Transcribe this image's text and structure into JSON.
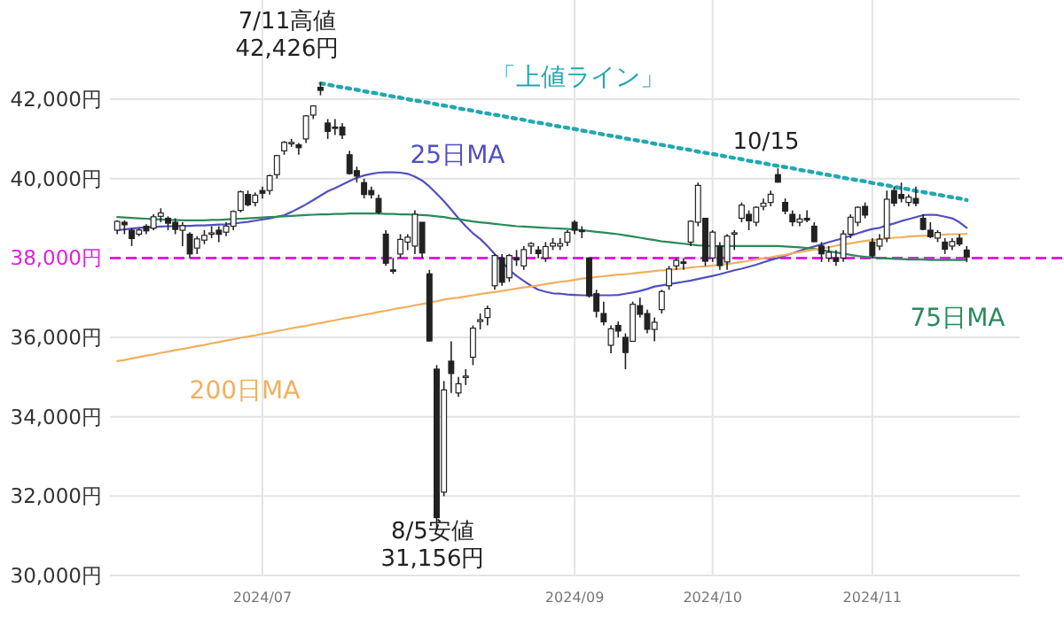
{
  "chart_data": {
    "type": "candlestick",
    "categories": [
      null,
      null,
      null,
      null,
      null,
      null,
      null,
      null,
      null,
      null,
      null,
      null,
      null,
      null,
      null,
      null,
      null,
      null,
      null,
      null,
      "2024/07",
      null,
      null,
      null,
      null,
      null,
      null,
      null,
      null,
      null,
      null,
      null,
      null,
      null,
      null,
      null,
      null,
      null,
      null,
      null,
      null,
      null,
      null,
      null,
      null,
      null,
      null,
      null,
      null,
      null,
      null,
      null,
      null,
      null,
      null,
      null,
      null,
      null,
      null,
      null,
      null,
      null,
      null,
      "2024/09",
      null,
      null,
      null,
      null,
      null,
      null,
      null,
      null,
      null,
      null,
      null,
      null,
      null,
      null,
      null,
      null,
      null,
      null,
      "2024/10",
      null,
      null,
      null,
      null,
      null,
      null,
      null,
      null,
      null,
      null,
      null,
      null,
      null,
      null,
      null,
      null,
      null,
      null,
      null,
      null,
      null,
      "2024/11",
      null,
      null,
      null,
      null,
      null,
      null,
      null,
      null,
      null,
      null,
      null,
      null,
      null
    ],
    "ohlc": [
      [
        38700,
        38950,
        38600,
        38923
      ],
      [
        38900,
        38950,
        38600,
        38837
      ],
      [
        38700,
        38750,
        38300,
        38490
      ],
      [
        38600,
        38750,
        38550,
        38703
      ],
      [
        38800,
        38850,
        38600,
        38683
      ],
      [
        38750,
        39100,
        38700,
        39038
      ],
      [
        39050,
        39250,
        38900,
        39134
      ],
      [
        39000,
        39050,
        38700,
        38876
      ],
      [
        38900,
        39000,
        38600,
        38720
      ],
      [
        38700,
        38900,
        38300,
        38814
      ],
      [
        38600,
        38650,
        38000,
        38102
      ],
      [
        38250,
        38550,
        38100,
        38482
      ],
      [
        38450,
        38700,
        38350,
        38570
      ],
      [
        38600,
        38800,
        38500,
        38633
      ],
      [
        38700,
        38800,
        38400,
        38596
      ],
      [
        38650,
        38900,
        38550,
        38804
      ],
      [
        38800,
        39200,
        38700,
        39173
      ],
      [
        39200,
        39700,
        39150,
        39667
      ],
      [
        39600,
        39700,
        39300,
        39341
      ],
      [
        39400,
        39650,
        39300,
        39583
      ],
      [
        39700,
        39800,
        39500,
        39631
      ],
      [
        39700,
        40100,
        39600,
        40074
      ],
      [
        40100,
        40600,
        40000,
        40580
      ],
      [
        40700,
        40950,
        40600,
        40913
      ],
      [
        40900,
        41000,
        40800,
        40912
      ],
      [
        40850,
        40900,
        40600,
        40780
      ],
      [
        41000,
        41600,
        40900,
        41580
      ],
      [
        41600,
        41850,
        41500,
        41831
      ],
      [
        42300,
        42426,
        42100,
        42224
      ],
      [
        41400,
        41500,
        41000,
        41190
      ],
      [
        41300,
        41500,
        41100,
        41275
      ],
      [
        41300,
        41400,
        41000,
        41098
      ],
      [
        40600,
        40700,
        40100,
        40126
      ],
      [
        40200,
        40300,
        39900,
        40063
      ],
      [
        39900,
        40000,
        39500,
        39599
      ],
      [
        39700,
        39800,
        39500,
        39594
      ],
      [
        39500,
        39600,
        39100,
        39154
      ],
      [
        38600,
        38700,
        37800,
        37869
      ],
      [
        37700,
        38000,
        37600,
        37667
      ],
      [
        38100,
        38600,
        38000,
        38468
      ],
      [
        38400,
        38600,
        38200,
        38525
      ],
      [
        38300,
        39200,
        38100,
        39101
      ],
      [
        38900,
        38900,
        38000,
        38126
      ],
      [
        37600,
        37700,
        35900,
        35909
      ],
      [
        35200,
        35300,
        31156,
        31458
      ],
      [
        32100,
        34900,
        32000,
        34675
      ],
      [
        35400,
        35900,
        34600,
        35089
      ],
      [
        34600,
        35000,
        34500,
        34831
      ],
      [
        35000,
        35200,
        34800,
        35025
      ],
      [
        35500,
        36300,
        35300,
        36232
      ],
      [
        36400,
        36600,
        36200,
        36442
      ],
      [
        36500,
        36800,
        36300,
        36726
      ],
      [
        37300,
        38100,
        37200,
        38062
      ],
      [
        38000,
        38100,
        37300,
        37388
      ],
      [
        37500,
        38100,
        37400,
        38062
      ],
      [
        38000,
        38200,
        37800,
        37951
      ],
      [
        37800,
        38300,
        37700,
        38211
      ],
      [
        38300,
        38400,
        38100,
        38364
      ],
      [
        38200,
        38300,
        38000,
        38110
      ],
      [
        38000,
        38400,
        37900,
        38288
      ],
      [
        38300,
        38500,
        38200,
        38371
      ],
      [
        38300,
        38500,
        38200,
        38362
      ],
      [
        38400,
        38700,
        38300,
        38647
      ],
      [
        38900,
        38950,
        38600,
        38700
      ],
      [
        38700,
        38800,
        38500,
        38686
      ],
      [
        38000,
        38000,
        37000,
        37047
      ],
      [
        37100,
        37200,
        36500,
        36657
      ],
      [
        36600,
        36900,
        36300,
        36391
      ],
      [
        35800,
        36300,
        35600,
        36215
      ],
      [
        36300,
        36400,
        36000,
        36159
      ],
      [
        36000,
        36100,
        35200,
        35619
      ],
      [
        35900,
        36900,
        35900,
        36833
      ],
      [
        36800,
        37000,
        36500,
        36581
      ],
      [
        36600,
        36700,
        36100,
        36203
      ],
      [
        36200,
        36500,
        35900,
        36380
      ],
      [
        36700,
        37200,
        36600,
        37155
      ],
      [
        37300,
        37800,
        37200,
        37723
      ],
      [
        37800,
        38000,
        37700,
        37940
      ],
      [
        37900,
        38000,
        37700,
        37870
      ],
      [
        38400,
        38950,
        38300,
        38925
      ],
      [
        38900,
        39900,
        38800,
        39829
      ],
      [
        39000,
        39000,
        37800,
        37919
      ],
      [
        38000,
        38700,
        37900,
        38651
      ],
      [
        38300,
        38400,
        37700,
        37808
      ],
      [
        37900,
        38600,
        37700,
        38552
      ],
      [
        38600,
        38700,
        38200,
        38635
      ],
      [
        39000,
        39400,
        38900,
        39332
      ],
      [
        39100,
        39200,
        38700,
        38937
      ],
      [
        38900,
        39300,
        38800,
        39277
      ],
      [
        39300,
        39500,
        39200,
        39380
      ],
      [
        39400,
        39700,
        39300,
        39605
      ],
      [
        40100,
        40257,
        39900,
        39910
      ],
      [
        39400,
        39500,
        39100,
        39180
      ],
      [
        39100,
        39200,
        38800,
        38911
      ],
      [
        38900,
        39100,
        38800,
        38981
      ],
      [
        39000,
        39200,
        38900,
        38954
      ],
      [
        38800,
        38900,
        38400,
        38411
      ],
      [
        38300,
        38400,
        37900,
        38104
      ],
      [
        38000,
        38300,
        37900,
        38143
      ],
      [
        38000,
        38200,
        37800,
        37913
      ],
      [
        38000,
        38700,
        37900,
        38605
      ],
      [
        38600,
        39100,
        38500,
        39027
      ],
      [
        38900,
        39300,
        38800,
        39277
      ],
      [
        39300,
        39400,
        39000,
        39081
      ],
      [
        38400,
        38500,
        38000,
        38053
      ],
      [
        38300,
        38600,
        38200,
        38474
      ],
      [
        38500,
        39700,
        38400,
        39480
      ],
      [
        39700,
        39800,
        39300,
        39381
      ],
      [
        39600,
        39900,
        39400,
        39500
      ],
      [
        39400,
        39600,
        39300,
        39533
      ],
      [
        39500,
        39800,
        39300,
        39376
      ],
      [
        39000,
        39100,
        38700,
        38721
      ],
      [
        38700,
        38900,
        38500,
        38535
      ],
      [
        38500,
        38700,
        38400,
        38642
      ],
      [
        38400,
        38500,
        38100,
        38220
      ],
      [
        38300,
        38500,
        38200,
        38414
      ],
      [
        38500,
        38600,
        38300,
        38352
      ],
      [
        38200,
        38300,
        37900,
        38026
      ]
    ],
    "series": [
      {
        "name": "25日MA",
        "type": "line",
        "color": "#5050c0",
        "values": [
          38700,
          38720,
          38740,
          38760,
          38770,
          38780,
          38790,
          38800,
          38800,
          38810,
          38810,
          38820,
          38820,
          38830,
          38840,
          38850,
          38870,
          38890,
          38910,
          38940,
          38970,
          39000,
          39040,
          39080,
          39160,
          39250,
          39350,
          39460,
          39570,
          39680,
          39760,
          39850,
          39940,
          40020,
          40080,
          40120,
          40150,
          40160,
          40160,
          40150,
          40120,
          40050,
          39950,
          39800,
          39620,
          39430,
          39220,
          39000,
          38800,
          38620,
          38480,
          38300,
          38100,
          37900,
          37700,
          37550,
          37420,
          37300,
          37200,
          37150,
          37110,
          37100,
          37080,
          37070,
          37060,
          37060,
          37060,
          37060,
          37060,
          37070,
          37100,
          37130,
          37170,
          37220,
          37280,
          37310,
          37340,
          37370,
          37400,
          37430,
          37470,
          37510,
          37550,
          37590,
          37640,
          37690,
          37730,
          37780,
          37830,
          37890,
          37950,
          38000,
          38060,
          38120,
          38180,
          38240,
          38290,
          38340,
          38400,
          38450,
          38500,
          38560,
          38620,
          38680,
          38730,
          38760,
          38820,
          38870,
          38930,
          38980,
          39030,
          39080,
          39090,
          39080,
          39040,
          39000,
          38900,
          38760
        ]
      },
      {
        "name": "75日MA",
        "type": "line",
        "color": "#2a8a5a",
        "values": [
          39030,
          39020,
          39010,
          39000,
          38990,
          38980,
          38970,
          38960,
          38960,
          38950,
          38950,
          38950,
          38950,
          38960,
          38960,
          38970,
          38980,
          38990,
          39000,
          39010,
          39020,
          39030,
          39040,
          39050,
          39060,
          39070,
          39080,
          39090,
          39100,
          39100,
          39110,
          39110,
          39120,
          39120,
          39120,
          39120,
          39120,
          39110,
          39110,
          39100,
          39100,
          39090,
          39080,
          39070,
          39050,
          39030,
          39000,
          38980,
          38950,
          38920,
          38900,
          38880,
          38860,
          38840,
          38820,
          38800,
          38790,
          38780,
          38770,
          38760,
          38750,
          38740,
          38730,
          38720,
          38700,
          38680,
          38660,
          38640,
          38620,
          38600,
          38570,
          38540,
          38510,
          38480,
          38450,
          38420,
          38400,
          38380,
          38360,
          38340,
          38320,
          38310,
          38300,
          38300,
          38300,
          38300,
          38300,
          38300,
          38300,
          38300,
          38300,
          38300,
          38290,
          38280,
          38270,
          38250,
          38230,
          38200,
          38170,
          38140,
          38110,
          38080,
          38050,
          38030,
          38010,
          38000,
          37990,
          37980,
          37970,
          37960,
          37960,
          37960,
          37950,
          37950,
          37950,
          37950,
          37950,
          37950
        ]
      },
      {
        "name": "200日MA",
        "type": "line",
        "color": "#f0b060",
        "values": [
          35400,
          35430,
          35470,
          35500,
          35540,
          35570,
          35610,
          35640,
          35680,
          35710,
          35740,
          35780,
          35810,
          35850,
          35880,
          35920,
          35950,
          35990,
          36020,
          36050,
          36090,
          36120,
          36160,
          36190,
          36230,
          36260,
          36290,
          36330,
          36360,
          36400,
          36430,
          36470,
          36500,
          36530,
          36570,
          36600,
          36640,
          36670,
          36710,
          36740,
          36770,
          36810,
          36840,
          36880,
          36910,
          36950,
          36980,
          37000,
          37030,
          37060,
          37090,
          37120,
          37140,
          37170,
          37200,
          37230,
          37260,
          37280,
          37310,
          37340,
          37370,
          37400,
          37420,
          37450,
          37480,
          37500,
          37520,
          37540,
          37560,
          37580,
          37590,
          37610,
          37630,
          37650,
          37670,
          37690,
          37700,
          37720,
          37740,
          37760,
          37780,
          37790,
          37810,
          37830,
          37850,
          37870,
          37900,
          37930,
          37960,
          37990,
          38020,
          38050,
          38080,
          38120,
          38150,
          38180,
          38210,
          38240,
          38270,
          38310,
          38340,
          38370,
          38400,
          38430,
          38450,
          38470,
          38490,
          38510,
          38520,
          38540,
          38550,
          38560,
          38570,
          38580,
          38590,
          38600,
          38600,
          38610
        ]
      },
      {
        "name": "「上値ライン」",
        "type": "line",
        "color": "#20a8b0",
        "line_style": "dotted",
        "values": [
          null,
          null,
          null,
          null,
          null,
          null,
          null,
          null,
          null,
          null,
          null,
          null,
          null,
          null,
          null,
          null,
          null,
          null,
          null,
          null,
          null,
          null,
          null,
          null,
          null,
          null,
          null,
          null,
          42400,
          42370,
          42330,
          42300,
          42270,
          42240,
          42200,
          42170,
          42140,
          42100,
          42070,
          42040,
          42000,
          41970,
          41940,
          41910,
          41870,
          41840,
          41810,
          41770,
          41740,
          41710,
          41670,
          41640,
          41610,
          41580,
          41540,
          41510,
          41480,
          41440,
          41410,
          41380,
          41340,
          41310,
          41280,
          41250,
          41210,
          41180,
          41150,
          41110,
          41080,
          41050,
          41010,
          40980,
          40950,
          40920,
          40880,
          40850,
          40820,
          40780,
          40750,
          40720,
          40680,
          40650,
          40620,
          40590,
          40550,
          40520,
          40490,
          40450,
          40420,
          40390,
          40350,
          40320,
          40290,
          40260,
          40220,
          40190,
          40160,
          40120,
          40090,
          40060,
          40020,
          39990,
          39960,
          39930,
          39890,
          39860,
          39830,
          39790,
          39760,
          39730,
          39690,
          39660,
          39630,
          39600,
          39560,
          39530,
          39500,
          39460
        ]
      }
    ],
    "ylim": [
      30000,
      44500
    ],
    "yticks": [
      {
        "value": 30000,
        "label": "30,000円"
      },
      {
        "value": 32000,
        "label": "32,000円"
      },
      {
        "value": 34000,
        "label": "34,000円"
      },
      {
        "value": 36000,
        "label": "36,000円"
      },
      {
        "value": 38000,
        "label": "38,000円"
      },
      {
        "value": 40000,
        "label": "40,000円"
      },
      {
        "value": 42000,
        "label": "42,000円"
      }
    ],
    "ref_lines": [
      {
        "axis": "y",
        "value": 38000,
        "color": "#e020e0",
        "line_style": "dashed"
      }
    ],
    "annotations": [
      "7/11高値\n42,426円",
      "8/5安値\n31,156円",
      "10/15"
    ],
    "grid": true
  }
}
